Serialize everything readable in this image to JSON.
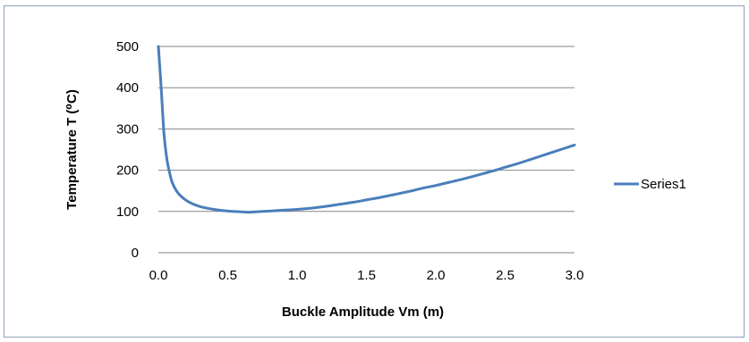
{
  "chart_data": {
    "type": "line",
    "title": "",
    "xlabel": "Buckle Amplitude Vm (m)",
    "ylabel": "Temperature T (⁰C)",
    "xlim": [
      0,
      3
    ],
    "ylim": [
      0,
      500
    ],
    "x_ticks": [
      "0.0",
      "0.5",
      "1.0",
      "1.5",
      "2.0",
      "2.5",
      "3.0"
    ],
    "y_ticks": [
      "0",
      "100",
      "200",
      "300",
      "400",
      "500"
    ],
    "grid": "horizontal",
    "legend_position": "right",
    "series": [
      {
        "name": "Series1",
        "color": "#4a7ebb",
        "x": [
          0.0,
          0.02,
          0.04,
          0.06,
          0.08,
          0.1,
          0.13,
          0.16,
          0.2,
          0.25,
          0.3,
          0.35,
          0.4,
          0.5,
          0.6,
          0.65,
          0.7,
          0.8,
          0.9,
          1.0,
          1.1,
          1.2,
          1.3,
          1.4,
          1.5,
          1.6,
          1.7,
          1.8,
          1.9,
          2.0,
          2.1,
          2.2,
          2.3,
          2.4,
          2.5,
          2.6,
          2.7,
          2.8,
          2.9,
          3.0
        ],
        "y": [
          500,
          400,
          290,
          230,
          195,
          170,
          150,
          138,
          127,
          118,
          112,
          108,
          105,
          101,
          99,
          98,
          99,
          101,
          103,
          105,
          108,
          112,
          117,
          122,
          128,
          134,
          141,
          148,
          156,
          163,
          171,
          179,
          188,
          197,
          207,
          217,
          228,
          239,
          250,
          261
        ]
      }
    ]
  }
}
